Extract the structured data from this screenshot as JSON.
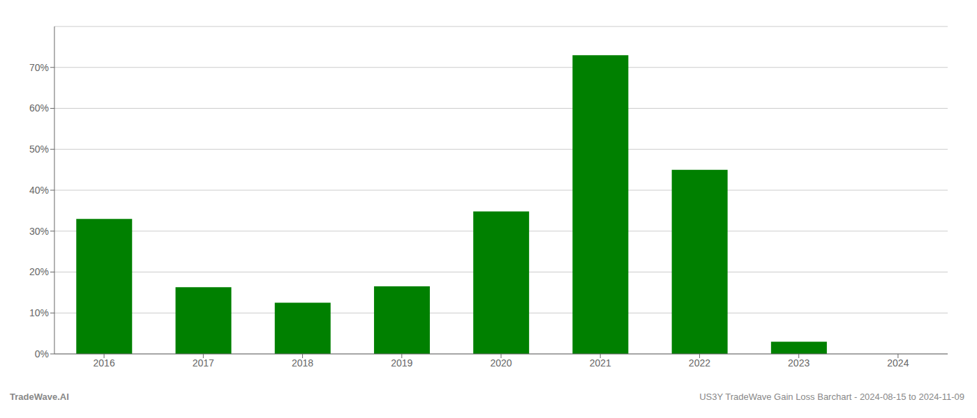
{
  "chart_data": {
    "type": "bar",
    "categories": [
      "2016",
      "2017",
      "2018",
      "2019",
      "2020",
      "2021",
      "2022",
      "2023",
      "2024"
    ],
    "values": [
      0.33,
      0.163,
      0.125,
      0.165,
      0.348,
      0.73,
      0.45,
      0.03,
      0.0
    ],
    "color": "#008000",
    "ylim": [
      0,
      0.8
    ],
    "yticks": [
      {
        "value": 0,
        "label": "0%"
      },
      {
        "value": 0.1,
        "label": "10%"
      },
      {
        "value": 0.2,
        "label": "20%"
      },
      {
        "value": 0.3,
        "label": "30%"
      },
      {
        "value": 0.4,
        "label": "40%"
      },
      {
        "value": 0.5,
        "label": "50%"
      },
      {
        "value": 0.6,
        "label": "60%"
      },
      {
        "value": 0.7,
        "label": "70%"
      }
    ],
    "grid": true,
    "annotations": [
      "TradeWave.AI",
      "US3Y TradeWave Gain Loss Barchart - 2024-08-15 to 2024-11-09"
    ]
  }
}
